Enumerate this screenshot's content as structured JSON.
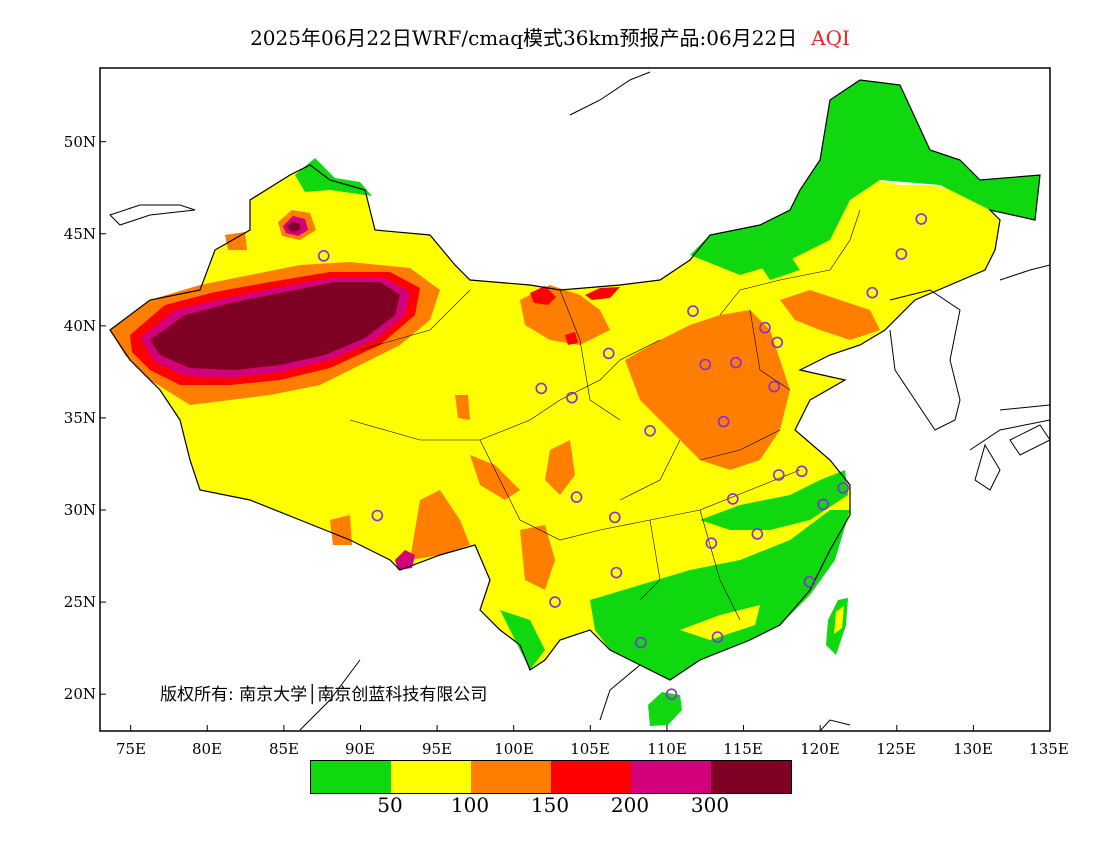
{
  "title": {
    "main": "2025年06月22日WRF/cmaq模式36km预报产品:06月22日",
    "variable": "AQI"
  },
  "axes": {
    "lat_labels": [
      "50N",
      "45N",
      "40N",
      "35N",
      "30N",
      "25N",
      "20N"
    ],
    "lon_labels": [
      "75E",
      "80E",
      "85E",
      "90E",
      "95E",
      "100E",
      "105E",
      "110E",
      "115E",
      "120E",
      "125E",
      "130E",
      "135E"
    ]
  },
  "copyright": "版权所有: 南京大学│南京创蓝科技有限公司",
  "legend": {
    "colors": [
      "#0fd80f",
      "#ffff00",
      "#ff7e00",
      "#ff0000",
      "#d2007a",
      "#7e0023"
    ],
    "labels": [
      "50",
      "100",
      "150",
      "200",
      "300"
    ]
  },
  "map": {
    "extent": {
      "lon_min": 73,
      "lon_max": 135,
      "lat_min": 18,
      "lat_max": 54
    },
    "dominant_category_mainland": "yellow (50-100)",
    "hotspot": "Taklimakan basin, AQI > 300",
    "city_marker_color": "#8a2be2",
    "cities": [
      {
        "lon": 126.6,
        "lat": 45.8
      },
      {
        "lon": 125.3,
        "lat": 43.9
      },
      {
        "lon": 123.4,
        "lat": 41.8
      },
      {
        "lon": 116.4,
        "lat": 39.9
      },
      {
        "lon": 117.2,
        "lat": 39.1
      },
      {
        "lon": 114.5,
        "lat": 38.0
      },
      {
        "lon": 112.5,
        "lat": 37.9
      },
      {
        "lon": 111.7,
        "lat": 40.8
      },
      {
        "lon": 117.0,
        "lat": 36.7
      },
      {
        "lon": 113.7,
        "lat": 34.8
      },
      {
        "lon": 108.9,
        "lat": 34.3
      },
      {
        "lon": 106.2,
        "lat": 38.5
      },
      {
        "lon": 103.8,
        "lat": 36.1
      },
      {
        "lon": 101.8,
        "lat": 36.6
      },
      {
        "lon": 87.6,
        "lat": 43.8
      },
      {
        "lon": 91.1,
        "lat": 29.7
      },
      {
        "lon": 104.1,
        "lat": 30.7
      },
      {
        "lon": 106.6,
        "lat": 29.6
      },
      {
        "lon": 106.7,
        "lat": 26.6
      },
      {
        "lon": 102.7,
        "lat": 25.0
      },
      {
        "lon": 108.3,
        "lat": 22.8
      },
      {
        "lon": 113.3,
        "lat": 23.1
      },
      {
        "lon": 110.3,
        "lat": 20.0
      },
      {
        "lon": 112.9,
        "lat": 28.2
      },
      {
        "lon": 114.3,
        "lat": 30.6
      },
      {
        "lon": 115.9,
        "lat": 28.7
      },
      {
        "lon": 117.3,
        "lat": 31.9
      },
      {
        "lon": 118.8,
        "lat": 32.1
      },
      {
        "lon": 120.2,
        "lat": 30.3
      },
      {
        "lon": 121.5,
        "lat": 31.2
      },
      {
        "lon": 119.3,
        "lat": 26.1
      }
    ]
  }
}
